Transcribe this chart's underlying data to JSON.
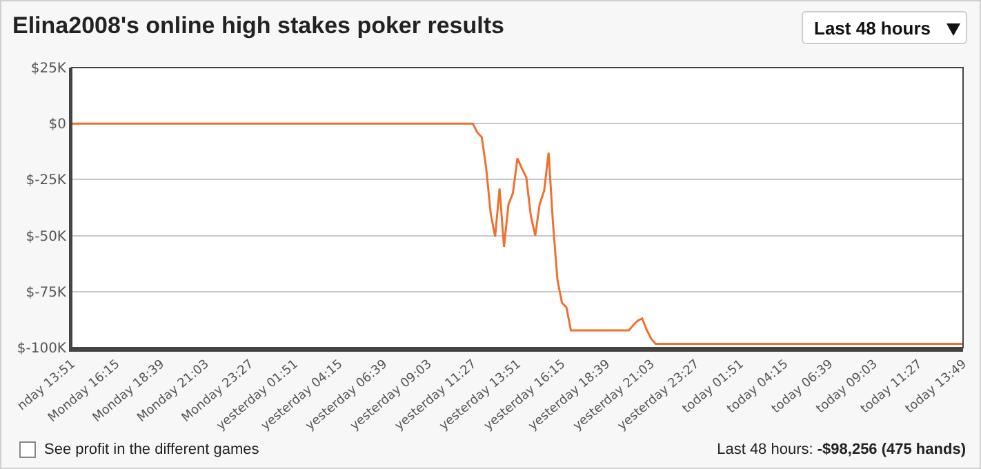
{
  "chart_data": {
    "type": "line",
    "title": "Elina2008's online high stakes poker results",
    "annotations": [
      "Last 48 hours",
      "See profit in the different games",
      "Last 48 hours:",
      "-$98,256 (475 hands)"
    ],
    "categories": [
      "nday 13:51",
      null,
      null,
      null,
      null,
      null,
      null,
      null,
      null,
      null,
      "Monday 16:15",
      null,
      null,
      null,
      null,
      null,
      null,
      null,
      null,
      null,
      "Monday 18:39",
      null,
      null,
      null,
      null,
      null,
      null,
      null,
      null,
      null,
      "Monday 21:03",
      null,
      null,
      null,
      null,
      null,
      null,
      null,
      null,
      null,
      "Monday 23:27",
      null,
      null,
      null,
      null,
      null,
      null,
      null,
      null,
      null,
      "yesterday 01:51",
      null,
      null,
      null,
      null,
      null,
      null,
      null,
      null,
      null,
      "yesterday 04:15",
      null,
      null,
      null,
      null,
      null,
      null,
      null,
      null,
      null,
      "yesterday 06:39",
      null,
      null,
      null,
      null,
      null,
      null,
      null,
      null,
      null,
      "yesterday 09:03",
      null,
      null,
      null,
      null,
      null,
      null,
      null,
      null,
      null,
      "yesterday 11:27",
      null,
      null,
      null,
      null,
      null,
      null,
      null,
      null,
      null,
      "yesterday 13:51",
      null,
      null,
      null,
      null,
      null,
      null,
      null,
      null,
      null,
      "yesterday 16:15",
      null,
      null,
      null,
      null,
      null,
      null,
      null,
      null,
      null,
      "yesterday 18:39",
      null,
      null,
      null,
      null,
      null,
      null,
      null,
      null,
      null,
      "yesterday 21:03",
      null,
      null,
      null,
      null,
      null,
      null,
      null,
      null,
      null,
      "yesterday 23:27",
      null,
      null,
      null,
      null,
      null,
      null,
      null,
      null,
      null,
      "today 01:51",
      null,
      null,
      null,
      null,
      null,
      null,
      null,
      null,
      null,
      "today 04:15",
      null,
      null,
      null,
      null,
      null,
      null,
      null,
      null,
      null,
      "today 06:39",
      null,
      null,
      null,
      null,
      null,
      null,
      null,
      null,
      null,
      "today 09:03",
      null,
      null,
      null,
      null,
      null,
      null,
      null,
      null,
      null,
      "today 11:27",
      null,
      null,
      null,
      null,
      null,
      null,
      null,
      null,
      null,
      "today 13:49"
    ],
    "series": [
      {
        "color": "#f07030",
        "values": [
          0,
          0,
          0,
          0,
          0,
          0,
          0,
          0,
          0,
          0,
          0,
          0,
          0,
          0,
          0,
          0,
          0,
          0,
          0,
          0,
          0,
          0,
          0,
          0,
          0,
          0,
          0,
          0,
          0,
          0,
          0,
          0,
          0,
          0,
          0,
          0,
          0,
          0,
          0,
          0,
          0,
          0,
          0,
          0,
          0,
          0,
          0,
          0,
          0,
          0,
          0,
          0,
          0,
          0,
          0,
          0,
          0,
          0,
          0,
          0,
          0,
          0,
          0,
          0,
          0,
          0,
          0,
          0,
          0,
          0,
          0,
          0,
          0,
          0,
          0,
          0,
          0,
          0,
          0,
          0,
          0,
          0,
          0,
          0,
          0,
          0,
          0,
          0,
          0,
          0,
          0,
          -4,
          -6,
          -20,
          -40,
          -50.5,
          -29,
          -55,
          -36,
          -31,
          -15.5,
          -20,
          -24,
          -41,
          -50,
          -36,
          -30,
          -13,
          -45,
          -70,
          -80,
          -82,
          -92.3,
          -92.3,
          -92.3,
          -92.3,
          -92.3,
          -92.3,
          -92.3,
          -92.3,
          -92.3,
          -92.3,
          -92.3,
          -92.3,
          -92.3,
          -92.3,
          -90,
          -88,
          -87,
          -92,
          -96,
          -98.3,
          -98.3,
          -98.3,
          -98.3,
          -98.3,
          -98.3,
          -98.3,
          -98.3,
          -98.3,
          -98.3,
          -98.3,
          -98.3,
          -98.3,
          -98.3,
          -98.3,
          -98.3,
          -98.3,
          -98.3,
          -98.3,
          -98.3,
          -98.3,
          -98.3,
          -98.3,
          -98.3,
          -98.3,
          -98.3,
          -98.3,
          -98.3,
          -98.3,
          -98.3,
          -98.3,
          -98.3,
          -98.3,
          -98.3,
          -98.3,
          -98.3,
          -98.3,
          -98.3,
          -98.3,
          -98.3,
          -98.3,
          -98.3,
          -98.3,
          -98.3,
          -98.3,
          -98.3,
          -98.3,
          -98.3,
          -98.3,
          -98.3,
          -98.3,
          -98.3,
          -98.3,
          -98.3,
          -98.3,
          -98.3,
          -98.3,
          -98.3,
          -98.3,
          -98.3,
          -98.3,
          -98.3,
          -98.3,
          -98.3,
          -98.3,
          -98.3,
          -98.3,
          -98.3,
          -98.3,
          -98.3
        ]
      }
    ],
    "ylim": [
      -100,
      25
    ],
    "yticks": [
      {
        "value": 25,
        "label": "$25K"
      },
      {
        "value": 0,
        "label": "$0"
      },
      {
        "value": -25,
        "label": "$-25K"
      },
      {
        "value": -50,
        "label": "$-50K"
      },
      {
        "value": -75,
        "label": "$-75K"
      },
      {
        "value": -100,
        "label": "$-100K"
      }
    ],
    "grid": "y",
    "marker": "none",
    "line_style": "solid"
  }
}
